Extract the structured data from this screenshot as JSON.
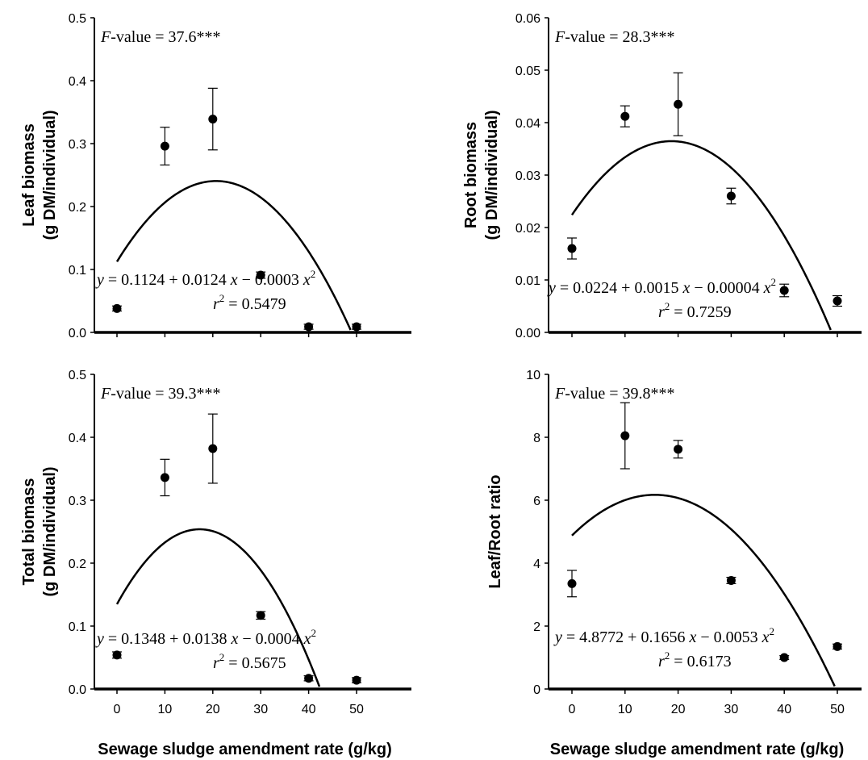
{
  "chart_data": [
    {
      "type": "scatter",
      "ylabel_line1": "Leaf biomass",
      "ylabel_line2": "(g DM/individual)",
      "xlabel": "",
      "ylim": [
        0,
        0.5
      ],
      "yticks": [
        "0.0",
        "0.1",
        "0.2",
        "0.3",
        "0.4",
        "0.5"
      ],
      "xticks": [],
      "x": [
        0,
        10,
        20,
        30,
        40,
        50
      ],
      "y": [
        0.038,
        0.296,
        0.339,
        0.091,
        0.009,
        0.009
      ],
      "err": [
        0.004,
        0.03,
        0.049,
        0.005,
        0.004,
        0.004
      ],
      "fit": {
        "a": 0.1124,
        "b": 0.0124,
        "c": -0.0003
      },
      "f_value_label": "-value = 37.6***",
      "eq_parts": [
        "= 0.1124 + 0.0124",
        "− 0.0003"
      ],
      "r2_value": "= 0.5479"
    },
    {
      "type": "scatter",
      "ylabel_line1": "Root biomass",
      "ylabel_line2": "(g DM/individual)",
      "xlabel": "",
      "ylim": [
        0,
        0.06
      ],
      "yticks": [
        "0.00",
        "0.01",
        "0.02",
        "0.03",
        "0.04",
        "0.05",
        "0.06"
      ],
      "xticks": [],
      "x": [
        0,
        10,
        20,
        30,
        40,
        50
      ],
      "y": [
        0.016,
        0.0412,
        0.0435,
        0.026,
        0.008,
        0.006
      ],
      "err": [
        0.002,
        0.002,
        0.006,
        0.0015,
        0.0012,
        0.001
      ],
      "fit": {
        "a": 0.0224,
        "b": 0.0015,
        "c": -4e-05
      },
      "f_value_label": "-value = 28.3***",
      "eq_parts": [
        "= 0.0224 + 0.0015",
        "− 0.00004"
      ],
      "r2_value": "= 0.7259"
    },
    {
      "type": "scatter",
      "ylabel_line1": "Total biomass",
      "ylabel_line2": "(g DM/individual)",
      "xlabel": "Sewage sludge amendment rate (g/kg)",
      "ylim": [
        0,
        0.5
      ],
      "yticks": [
        "0.0",
        "0.1",
        "0.2",
        "0.3",
        "0.4",
        "0.5"
      ],
      "xticks": [
        "0",
        "10",
        "20",
        "30",
        "40",
        "50"
      ],
      "x": [
        0,
        10,
        20,
        30,
        40,
        50
      ],
      "y": [
        0.054,
        0.336,
        0.382,
        0.117,
        0.017,
        0.014
      ],
      "err": [
        0.005,
        0.029,
        0.055,
        0.006,
        0.004,
        0.004
      ],
      "fit": {
        "a": 0.1348,
        "b": 0.0138,
        "c": -0.0004
      },
      "f_value_label": "-value = 39.3***",
      "eq_parts": [
        "= 0.1348 + 0.0138",
        "− 0.0004"
      ],
      "r2_value": "= 0.5675"
    },
    {
      "type": "scatter",
      "ylabel_line1": "Leaf/Root ratio",
      "ylabel_line2": "",
      "xlabel": "Sewage sludge amendment rate (g/kg)",
      "ylim": [
        0,
        10
      ],
      "yticks": [
        "0",
        "2",
        "4",
        "6",
        "8",
        "10"
      ],
      "xticks": [
        "0",
        "10",
        "20",
        "30",
        "40",
        "50"
      ],
      "x": [
        0,
        10,
        20,
        30,
        40,
        50
      ],
      "y": [
        3.35,
        8.05,
        7.62,
        3.45,
        1.0,
        1.35
      ],
      "err": [
        0.42,
        1.05,
        0.28,
        0.1,
        0.06,
        0.08
      ],
      "fit": {
        "a": 4.8772,
        "b": 0.1656,
        "c": -0.0053
      },
      "f_value_label": "-value = 39.8***",
      "eq_parts": [
        "= 4.8772 + 0.1656",
        "− 0.0053"
      ],
      "r2_value": "= 0.6173"
    }
  ],
  "symbols": {
    "F": "F",
    "y": "y",
    "x": "x",
    "r": "r",
    "two": "2"
  }
}
